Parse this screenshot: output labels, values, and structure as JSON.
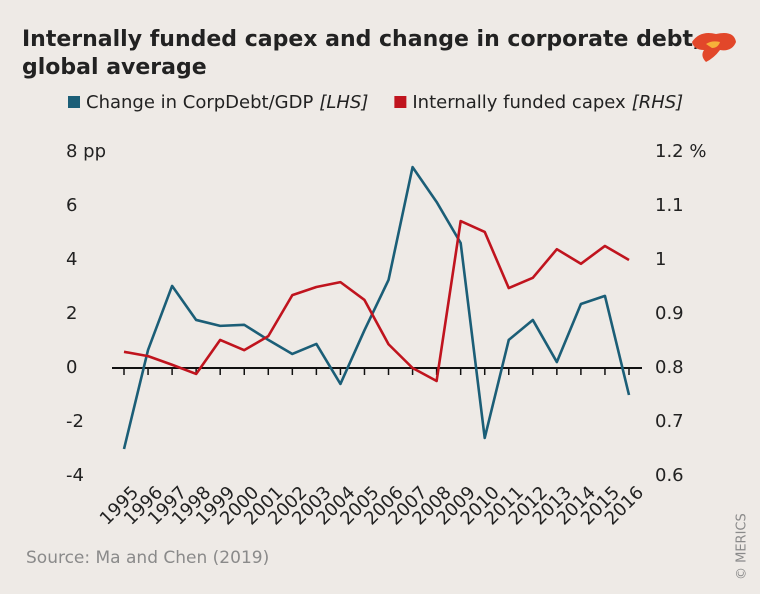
{
  "chart_data": {
    "type": "line",
    "title": "Internally funded capex and change in corporate debt,",
    "title_line2": "global average",
    "categories": [
      "1995",
      "1996",
      "1997",
      "1998",
      "1999",
      "2000",
      "2001",
      "2002",
      "2003",
      "2004",
      "2005",
      "2006",
      "2007",
      "2008",
      "2009",
      "2010",
      "2011",
      "2012",
      "2013",
      "2014",
      "2015",
      "2016"
    ],
    "series": [
      {
        "name": "Change in CorpDebt/GDP",
        "name_suffix": "[LHS]",
        "color": "#1b5e77",
        "values": [
          -3.0,
          0.67,
          3.04,
          1.78,
          1.56,
          1.6,
          1.04,
          0.52,
          0.89,
          -0.59,
          1.4,
          3.26,
          7.44,
          6.15,
          4.63,
          -2.59,
          1.04,
          1.78,
          0.22,
          2.37,
          2.67,
          -1.0
        ]
      },
      {
        "name": "Internally funded capex",
        "name_suffix": "[RHS]",
        "color": "#c0141e",
        "axis": "y2",
        "values": [
          0.83,
          0.822,
          0.806,
          0.789,
          0.852,
          0.833,
          0.859,
          0.935,
          0.95,
          0.959,
          0.926,
          0.844,
          0.8,
          0.776,
          1.072,
          1.052,
          0.948,
          0.967,
          1.02,
          0.993,
          1.026,
          1.0
        ]
      }
    ],
    "ylim": [
      -4,
      8
    ],
    "yticks": [
      {
        "value": 8,
        "label": "8 pp"
      },
      6,
      4,
      2,
      0,
      -2,
      -4
    ],
    "y2lim": [
      0.6,
      1.2
    ],
    "y2ticks": [
      {
        "value": 1.2,
        "label": "1.2 %"
      },
      1.1,
      1,
      0.9,
      0.8,
      0.7,
      0.6
    ],
    "grid": false,
    "source": "Source: Ma and Chen (2019)",
    "credit": "© MERICS"
  }
}
